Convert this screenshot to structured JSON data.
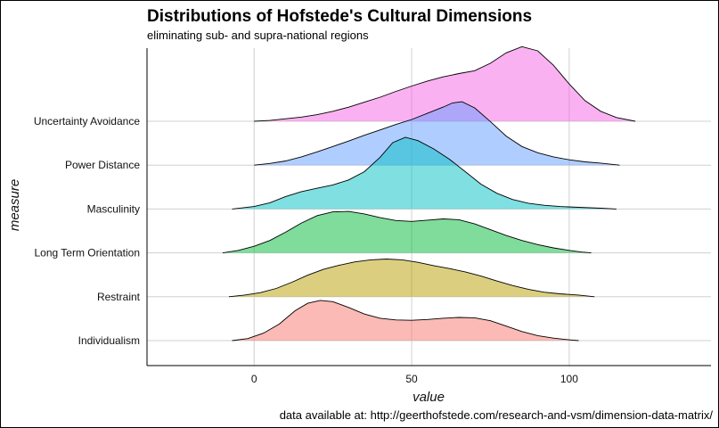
{
  "chart_data": {
    "type": "area",
    "title": "Distributions of Hofstede's Cultural Dimensions",
    "subtitle": "eliminating sub- and supra-national regions",
    "xlabel": "value",
    "ylabel": "measure",
    "caption": "data available at: http://geerthofstede.com/research-and-vsm/dimension-data-matrix/",
    "xlim": [
      -34,
      145
    ],
    "x_ticks": [
      0,
      50,
      100
    ],
    "categories": [
      "Individualism",
      "Restraint",
      "Long Term Orientation",
      "Masculinity",
      "Power Distance",
      "Uncertainty Avoidance"
    ],
    "grid": true,
    "series": [
      {
        "name": "Individualism",
        "color": "#F8766D",
        "density": [
          [
            -7,
            0
          ],
          [
            -2,
            0.05
          ],
          [
            3,
            0.18
          ],
          [
            8,
            0.4
          ],
          [
            13,
            0.72
          ],
          [
            17,
            0.9
          ],
          [
            21,
            0.97
          ],
          [
            25,
            0.94
          ],
          [
            30,
            0.8
          ],
          [
            35,
            0.64
          ],
          [
            40,
            0.54
          ],
          [
            45,
            0.5
          ],
          [
            50,
            0.49
          ],
          [
            55,
            0.51
          ],
          [
            60,
            0.54
          ],
          [
            65,
            0.56
          ],
          [
            70,
            0.55
          ],
          [
            75,
            0.48
          ],
          [
            80,
            0.35
          ],
          [
            85,
            0.22
          ],
          [
            90,
            0.12
          ],
          [
            95,
            0.06
          ],
          [
            100,
            0.02
          ],
          [
            103,
            0.0
          ]
        ]
      },
      {
        "name": "Restraint",
        "color": "#B79F00",
        "density": [
          [
            -8,
            0
          ],
          [
            -3,
            0.04
          ],
          [
            2,
            0.1
          ],
          [
            7,
            0.2
          ],
          [
            12,
            0.35
          ],
          [
            17,
            0.52
          ],
          [
            22,
            0.66
          ],
          [
            27,
            0.76
          ],
          [
            32,
            0.84
          ],
          [
            37,
            0.89
          ],
          [
            42,
            0.91
          ],
          [
            47,
            0.89
          ],
          [
            52,
            0.83
          ],
          [
            57,
            0.75
          ],
          [
            62,
            0.68
          ],
          [
            67,
            0.6
          ],
          [
            72,
            0.5
          ],
          [
            77,
            0.38
          ],
          [
            82,
            0.27
          ],
          [
            87,
            0.18
          ],
          [
            92,
            0.11
          ],
          [
            97,
            0.07
          ],
          [
            103,
            0.04
          ],
          [
            108,
            0.0
          ]
        ]
      },
      {
        "name": "Long Term Orientation",
        "color": "#00BA38",
        "density": [
          [
            -10,
            0
          ],
          [
            -5,
            0.06
          ],
          [
            0,
            0.16
          ],
          [
            5,
            0.3
          ],
          [
            10,
            0.5
          ],
          [
            15,
            0.72
          ],
          [
            20,
            0.9
          ],
          [
            25,
            0.99
          ],
          [
            30,
            1.0
          ],
          [
            35,
            0.94
          ],
          [
            40,
            0.85
          ],
          [
            45,
            0.78
          ],
          [
            50,
            0.76
          ],
          [
            55,
            0.79
          ],
          [
            60,
            0.82
          ],
          [
            65,
            0.8
          ],
          [
            70,
            0.7
          ],
          [
            75,
            0.56
          ],
          [
            80,
            0.42
          ],
          [
            85,
            0.3
          ],
          [
            90,
            0.2
          ],
          [
            95,
            0.12
          ],
          [
            100,
            0.06
          ],
          [
            104,
            0.02
          ],
          [
            107,
            0.0
          ]
        ]
      },
      {
        "name": "Masculinity",
        "color": "#00BFC4",
        "density": [
          [
            -7,
            0
          ],
          [
            0,
            0.06
          ],
          [
            5,
            0.15
          ],
          [
            10,
            0.3
          ],
          [
            15,
            0.42
          ],
          [
            20,
            0.5
          ],
          [
            25,
            0.58
          ],
          [
            30,
            0.7
          ],
          [
            35,
            0.9
          ],
          [
            40,
            1.25
          ],
          [
            44,
            1.6
          ],
          [
            48,
            1.73
          ],
          [
            52,
            1.65
          ],
          [
            57,
            1.45
          ],
          [
            62,
            1.2
          ],
          [
            67,
            0.9
          ],
          [
            72,
            0.6
          ],
          [
            77,
            0.38
          ],
          [
            82,
            0.23
          ],
          [
            87,
            0.14
          ],
          [
            92,
            0.09
          ],
          [
            97,
            0.06
          ],
          [
            103,
            0.04
          ],
          [
            110,
            0.02
          ],
          [
            115,
            0.0
          ]
        ]
      },
      {
        "name": "Power Distance",
        "color": "#619CFF",
        "density": [
          [
            0,
            0
          ],
          [
            5,
            0.04
          ],
          [
            10,
            0.1
          ],
          [
            15,
            0.2
          ],
          [
            20,
            0.32
          ],
          [
            25,
            0.45
          ],
          [
            30,
            0.58
          ],
          [
            35,
            0.72
          ],
          [
            40,
            0.85
          ],
          [
            45,
            0.98
          ],
          [
            50,
            1.1
          ],
          [
            55,
            1.25
          ],
          [
            60,
            1.4
          ],
          [
            63,
            1.5
          ],
          [
            66,
            1.53
          ],
          [
            70,
            1.38
          ],
          [
            75,
            1.05
          ],
          [
            80,
            0.7
          ],
          [
            85,
            0.45
          ],
          [
            90,
            0.3
          ],
          [
            95,
            0.2
          ],
          [
            100,
            0.13
          ],
          [
            105,
            0.08
          ],
          [
            110,
            0.05
          ],
          [
            116,
            0.0
          ]
        ]
      },
      {
        "name": "Uncertainty Avoidance",
        "color": "#F564E3",
        "density": [
          [
            0,
            0
          ],
          [
            5,
            0.02
          ],
          [
            10,
            0.06
          ],
          [
            15,
            0.1
          ],
          [
            20,
            0.16
          ],
          [
            25,
            0.24
          ],
          [
            30,
            0.34
          ],
          [
            35,
            0.46
          ],
          [
            40,
            0.58
          ],
          [
            45,
            0.72
          ],
          [
            50,
            0.85
          ],
          [
            55,
            0.97
          ],
          [
            60,
            1.07
          ],
          [
            65,
            1.15
          ],
          [
            70,
            1.22
          ],
          [
            75,
            1.4
          ],
          [
            80,
            1.65
          ],
          [
            85,
            1.8
          ],
          [
            90,
            1.7
          ],
          [
            95,
            1.35
          ],
          [
            100,
            0.9
          ],
          [
            105,
            0.5
          ],
          [
            110,
            0.24
          ],
          [
            115,
            0.09
          ],
          [
            121,
            0.0
          ]
        ]
      }
    ]
  }
}
